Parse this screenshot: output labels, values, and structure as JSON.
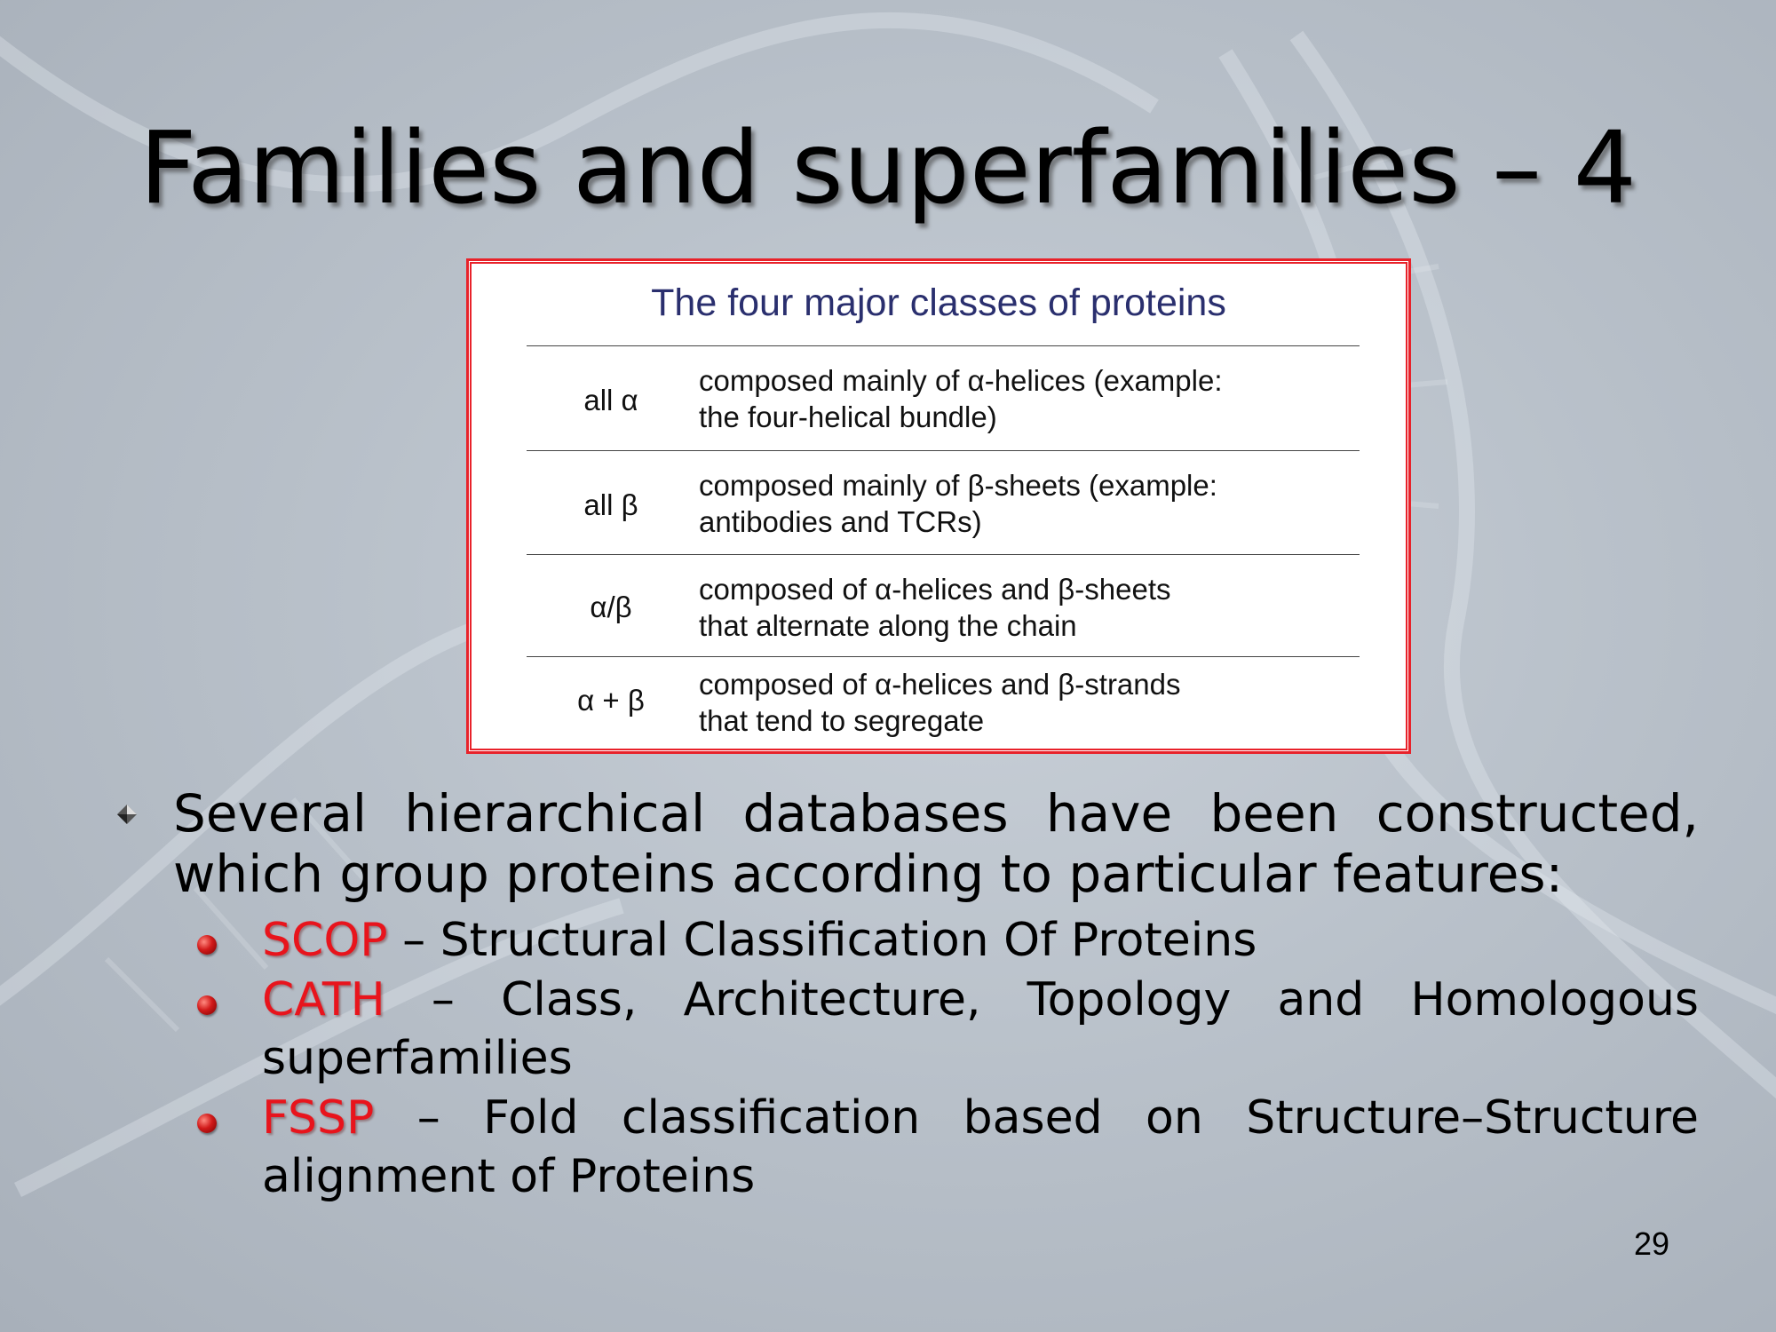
{
  "slide": {
    "title": "Families and superfamilies – 4",
    "page_number": "29"
  },
  "table": {
    "title": "The four major classes of proteins",
    "rows": [
      {
        "class": "all α",
        "line1": "composed mainly of α-helices (example:",
        "line2": "the four-helical bundle)"
      },
      {
        "class": "all β",
        "line1": "composed mainly of  β-sheets (example:",
        "line2": "antibodies and TCRs)"
      },
      {
        "class": "α/β",
        "line1": "composed of α-helices and β-sheets",
        "line2": "that alternate along the chain"
      },
      {
        "class": "α + β",
        "line1": "composed of α-helices and β-strands",
        "line2": "that tend to segregate"
      }
    ]
  },
  "body": {
    "intro": "Several hierarchical databases have been constructed, which group proteins according to particular features:",
    "items": [
      {
        "acronym": "SCOP",
        "text": " – Structural Classification Of Proteins"
      },
      {
        "acronym": "CATH",
        "text": " – Class, Architecture, Topology and Homologous superfamilies"
      },
      {
        "acronym": "FSSP",
        "text": " – Fold classification based on Structure–Structure alignment of Proteins"
      }
    ]
  },
  "colors": {
    "accent_red": "#e8141c",
    "table_title": "#2a2f6e"
  }
}
